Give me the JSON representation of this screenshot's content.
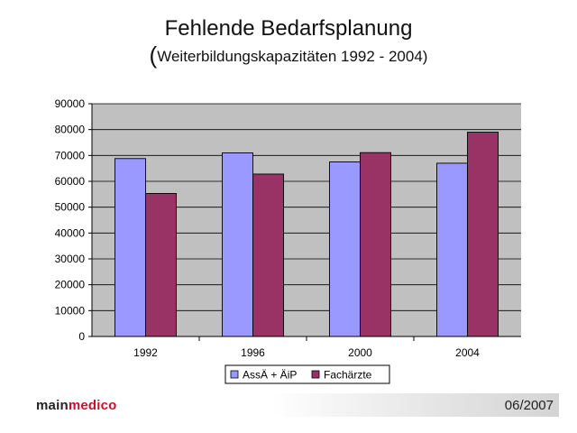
{
  "slide": {
    "title": "Fehlende Bedarfsplanung",
    "subtitle_paren_open": "(",
    "subtitle_text": "Weiterbildungskapazitäten 1992 - 2004)"
  },
  "footer": {
    "brand_part1": "main",
    "brand_part2": "medico",
    "date": "06/2007"
  },
  "colors": {
    "plot_bg": "#c0c0c0",
    "series1": "#9999ff",
    "series2": "#993366",
    "brand_accent": "#c8102e"
  },
  "chart_data": {
    "type": "bar",
    "categories": [
      "1992",
      "1996",
      "2000",
      "2004"
    ],
    "series": [
      {
        "name": "AssÄ + ÄiP",
        "values": [
          68800,
          71000,
          67500,
          67000
        ],
        "color": "#9999ff"
      },
      {
        "name": "Fachärzte",
        "values": [
          55300,
          62800,
          71100,
          79000
        ],
        "color": "#993366"
      }
    ],
    "ylim": [
      0,
      90000
    ],
    "yticks": [
      0,
      10000,
      20000,
      30000,
      40000,
      50000,
      60000,
      70000,
      80000,
      90000
    ],
    "grid": true,
    "legend": "bottom",
    "xlabel": "",
    "ylabel": ""
  }
}
